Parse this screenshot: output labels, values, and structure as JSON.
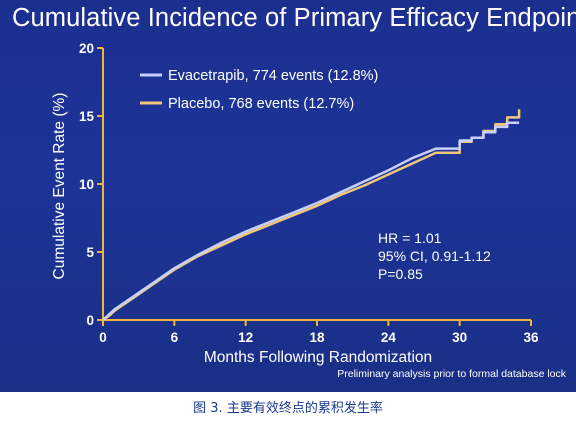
{
  "slide": {
    "title": "Cumulative Incidence of Primary Efficacy Endpoint",
    "footnote": "Preliminary analysis prior to formal database lock"
  },
  "caption": "图 3. 主要有效终点的累积发生率",
  "colors": {
    "background": "#1d3497",
    "axis": "#f2b338",
    "evacetrapib": "#c8d0ff",
    "placebo": "#f2c77a",
    "text": "#ffffff"
  },
  "chart_data": {
    "type": "line",
    "title": "Cumulative Incidence of Primary Efficacy Endpoint",
    "xlabel": "Months Following Randomization",
    "ylabel": "Cumulative Event Rate (%)",
    "xlim": [
      0,
      36
    ],
    "ylim": [
      0,
      20
    ],
    "xticks": [
      "0",
      "6",
      "12",
      "18",
      "24",
      "30",
      "36"
    ],
    "yticks": [
      "0",
      "5",
      "10",
      "15",
      "20"
    ],
    "legend_position": "top-left",
    "series": [
      {
        "name": "Evacetrapib, 774 events (12.8%)",
        "color": "#c8d0ff",
        "x": [
          0,
          0.5,
          1,
          2,
          3,
          4,
          5,
          6,
          8,
          10,
          12,
          14,
          16,
          18,
          20,
          22,
          24,
          26,
          28,
          30,
          31,
          32,
          33,
          34,
          35
        ],
        "y": [
          0,
          0.4,
          0.8,
          1.4,
          2.0,
          2.6,
          3.2,
          3.8,
          4.8,
          5.7,
          6.5,
          7.2,
          7.9,
          8.6,
          9.4,
          10.2,
          11.0,
          11.9,
          12.6,
          13.2,
          13.4,
          13.8,
          14.2,
          14.5,
          14.5
        ]
      },
      {
        "name": "Placebo, 768 events (12.7%)",
        "color": "#f2c77a",
        "x": [
          0,
          0.5,
          1,
          2,
          3,
          4,
          5,
          6,
          8,
          10,
          12,
          14,
          16,
          18,
          20,
          22,
          24,
          26,
          28,
          30,
          31,
          32,
          33,
          34,
          35
        ],
        "y": [
          0,
          0.3,
          0.7,
          1.3,
          1.9,
          2.5,
          3.1,
          3.7,
          4.7,
          5.5,
          6.3,
          7.0,
          7.7,
          8.4,
          9.2,
          9.9,
          10.7,
          11.5,
          12.3,
          13.1,
          13.4,
          13.9,
          14.4,
          14.9,
          15.5
        ]
      }
    ],
    "annotations": [
      "HR = 1.01",
      "95% CI, 0.91-1.12",
      "P=0.85"
    ]
  }
}
